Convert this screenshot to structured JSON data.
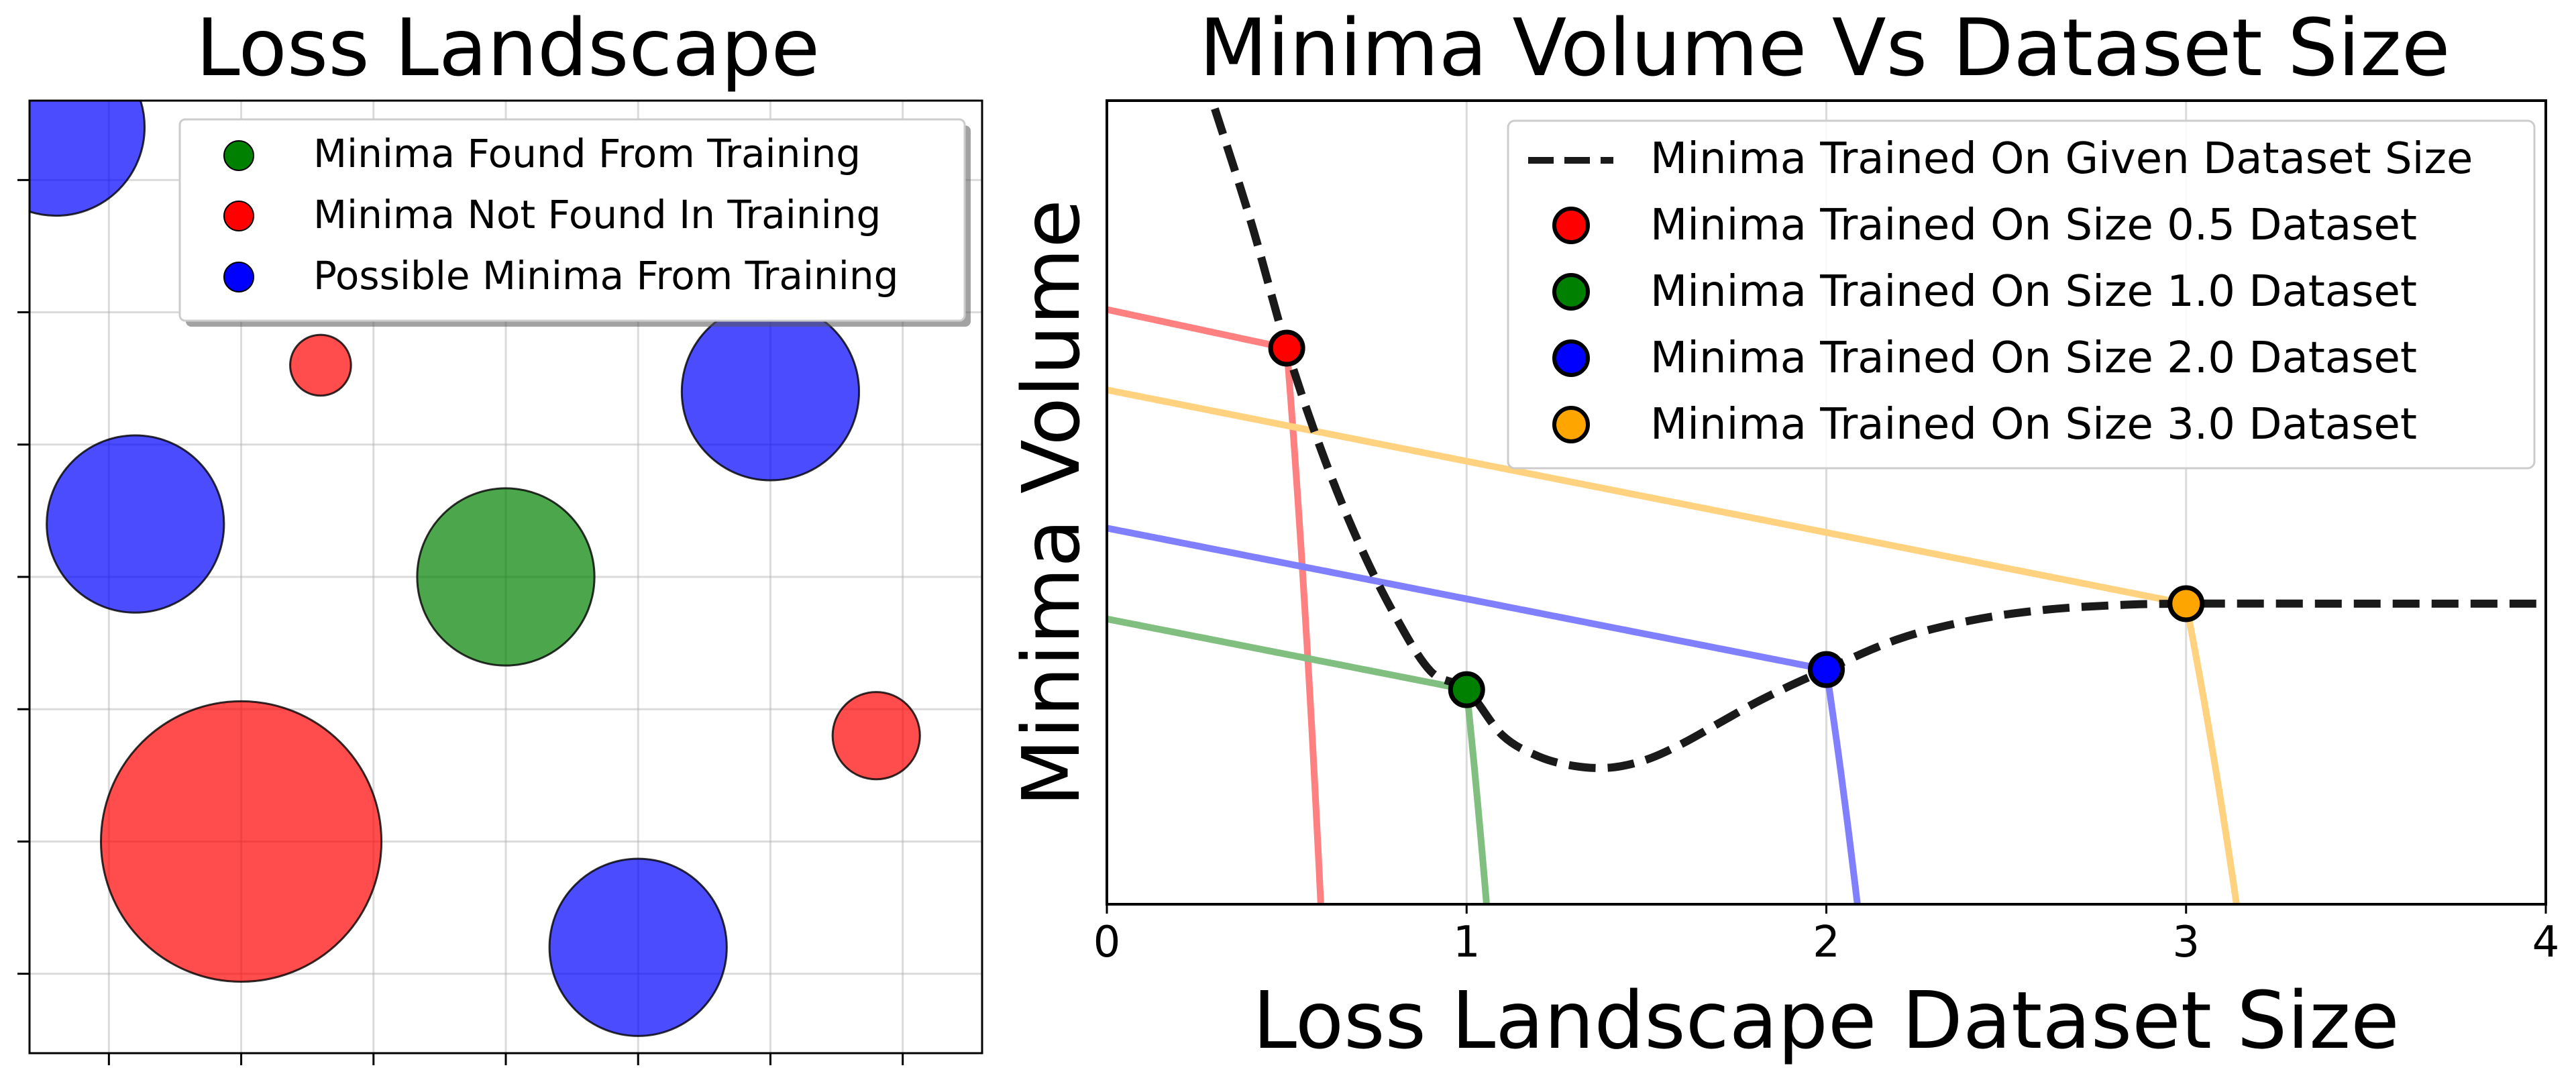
{
  "chart_data": [
    {
      "type": "scatter",
      "title": "Loss Landscape",
      "xlabel": "",
      "ylabel": "",
      "xlim": [
        0,
        7.2
      ],
      "ylim": [
        0,
        7.2
      ],
      "grid": true,
      "xticks": [
        0.6,
        1.6,
        2.6,
        3.6,
        4.6,
        5.6,
        6.6
      ],
      "yticks": [
        0.6,
        1.6,
        2.6,
        3.6,
        4.6,
        5.6,
        6.6
      ],
      "legend": {
        "placement": "top-right",
        "entries": [
          {
            "label": "Minima Found From Training",
            "color": "#008000"
          },
          {
            "label": "Minima Not Found In Training",
            "color": "#ff0000"
          },
          {
            "label": "Possible Minima From Training",
            "color": "#0000ff"
          }
        ]
      },
      "series": [
        {
          "name": "Minima Found From Training",
          "color": "#008000",
          "points": [
            {
              "x": 3.6,
              "y": 3.6,
              "r": 0.67
            }
          ]
        },
        {
          "name": "Minima Not Found In Training",
          "color": "#ff0000",
          "points": [
            {
              "x": 1.6,
              "y": 1.6,
              "r": 1.06
            },
            {
              "x": 2.2,
              "y": 5.2,
              "r": 0.23
            },
            {
              "x": 6.4,
              "y": 2.4,
              "r": 0.33
            }
          ]
        },
        {
          "name": "Possible Minima From Training",
          "color": "#0000ff",
          "points": [
            {
              "x": 0.2,
              "y": 7.0,
              "r": 0.67
            },
            {
              "x": 0.8,
              "y": 4.0,
              "r": 0.67
            },
            {
              "x": 5.6,
              "y": 5.0,
              "r": 0.67
            },
            {
              "x": 4.6,
              "y": 0.8,
              "r": 0.67
            }
          ]
        }
      ]
    },
    {
      "type": "line",
      "title": "Minima Volume Vs Dataset Size",
      "xlabel": "Loss Landscape Dataset Size",
      "ylabel": "Minima Volume",
      "xlim": [
        0,
        4
      ],
      "ylim": [
        0,
        1
      ],
      "grid": true,
      "xticks": [
        0,
        1,
        2,
        3,
        4
      ],
      "legend": {
        "placement": "top-right",
        "entries": [
          {
            "label": "Minima Trained On Given Dataset Size",
            "style": "dashed-line",
            "color": "#1a1a1a"
          },
          {
            "label": "Minima Trained On Size 0.5 Dataset",
            "style": "marker",
            "color": "#ff0000"
          },
          {
            "label": "Minima Trained On Size 1.0 Dataset",
            "style": "marker",
            "color": "#008000"
          },
          {
            "label": "Minima Trained On Size 2.0 Dataset",
            "style": "marker",
            "color": "#0000ff"
          },
          {
            "label": "Minima Trained On Size 3.0 Dataset",
            "style": "marker",
            "color": "#ffa500"
          }
        ]
      },
      "dashed_curve": {
        "name": "Minima Trained On Given Dataset Size",
        "color": "#1a1a1a",
        "x": [
          0.3,
          0.4,
          0.5,
          0.6,
          0.7,
          0.8,
          0.9,
          1.0,
          1.1,
          1.2,
          1.3,
          1.4,
          1.5,
          1.6,
          1.7,
          1.8,
          1.9,
          2.0,
          2.2,
          2.4,
          2.6,
          2.8,
          3.0,
          3.5,
          4.0
        ],
        "y": [
          0.99,
          0.85,
          0.692,
          0.56,
          0.45,
          0.36,
          0.29,
          0.267,
          0.21,
          0.184,
          0.172,
          0.17,
          0.18,
          0.2,
          0.225,
          0.25,
          0.272,
          0.292,
          0.33,
          0.353,
          0.366,
          0.372,
          0.374,
          0.374,
          0.374
        ]
      },
      "series": [
        {
          "name": "Minima Trained On Size 0.5 Dataset",
          "color": "#ff0000",
          "line_color": "#ff8080",
          "point": {
            "x": 0.5,
            "y": 0.692
          },
          "y_at_0": 0.74,
          "slope": 0.096,
          "drop_rate": 5.5
        },
        {
          "name": "Minima Trained On Size 1.0 Dataset",
          "color": "#008000",
          "line_color": "#80bf80",
          "point": {
            "x": 1.0,
            "y": 0.267
          },
          "y_at_0": 0.355,
          "slope": 0.088,
          "drop_rate": 4.2
        },
        {
          "name": "Minima Trained On Size 2.0 Dataset",
          "color": "#0000ff",
          "line_color": "#8080ff",
          "point": {
            "x": 2.0,
            "y": 0.292
          },
          "y_at_0": 0.468,
          "slope": 0.088,
          "drop_rate": 2.9
        },
        {
          "name": "Minima Trained On Size 3.0 Dataset",
          "color": "#ffa500",
          "line_color": "#ffd280",
          "point": {
            "x": 3.0,
            "y": 0.374
          },
          "y_at_0": 0.64,
          "slope": 0.0887,
          "drop_rate": 2.2
        }
      ]
    }
  ]
}
